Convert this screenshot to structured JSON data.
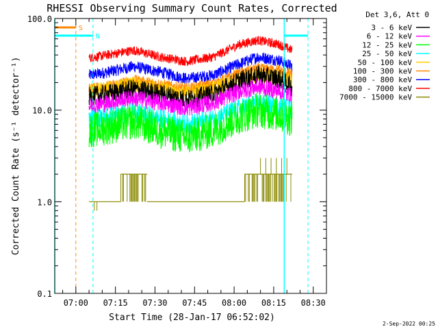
{
  "chart_data": {
    "type": "line",
    "title": "RHESSI Observing Summary Count Rates, Corrected",
    "xlabel": "Start Time (28-Jan-17 06:52:02)",
    "ylabel": "Corrected Count Rate (s⁻¹ detector⁻¹)",
    "yscale": "log",
    "ylim": [
      0.1,
      100
    ],
    "xlim_minutes_after_0652": [
      0,
      103
    ],
    "y_tick_labels": [
      "100.0",
      "10.0",
      "1.0",
      "0.1"
    ],
    "y_tick_values": [
      100,
      10,
      1,
      0.1
    ],
    "x_tick_labels": [
      "07:00",
      "07:15",
      "07:30",
      "07:45",
      "08:00",
      "08:15",
      "08:30"
    ],
    "x_tick_values_min": [
      8,
      23,
      38,
      53,
      68,
      83,
      98
    ],
    "legend": {
      "header": "Det 3,6, Att 0",
      "entries": [
        {
          "label": "3 - 6 keV",
          "color": "#000000"
        },
        {
          "label": "6 - 12 keV",
          "color": "#ff00ff"
        },
        {
          "label": "12 - 25 keV",
          "color": "#00ff00"
        },
        {
          "label": "25 - 50 keV",
          "color": "#00ffff"
        },
        {
          "label": "50 - 100 keV",
          "color": "#ffcc00"
        },
        {
          "label": "100 - 300 keV",
          "color": "#ff8800"
        },
        {
          "label": "300 - 800 keV",
          "color": "#0000ff"
        },
        {
          "label": "800 - 7000 keV",
          "color": "#ff0000"
        },
        {
          "label": "7000 - 15000 keV",
          "color": "#888800"
        }
      ]
    },
    "series": [
      {
        "name": "3 - 6 keV",
        "color": "#000000",
        "start": 13,
        "end": 90,
        "amp": 0.25,
        "points": [
          [
            13,
            14
          ],
          [
            20,
            15
          ],
          [
            30,
            17
          ],
          [
            40,
            15
          ],
          [
            50,
            13
          ],
          [
            60,
            15
          ],
          [
            70,
            21
          ],
          [
            77,
            24
          ],
          [
            85,
            22
          ],
          [
            90,
            18
          ]
        ]
      },
      {
        "name": "6 - 12 keV",
        "color": "#ff00ff",
        "start": 13,
        "end": 90,
        "amp": 0.22,
        "points": [
          [
            13,
            11
          ],
          [
            20,
            12
          ],
          [
            30,
            13.5
          ],
          [
            40,
            12
          ],
          [
            50,
            10.5
          ],
          [
            60,
            12
          ],
          [
            70,
            16
          ],
          [
            77,
            18
          ],
          [
            85,
            16
          ],
          [
            90,
            14
          ]
        ]
      },
      {
        "name": "12 - 25 keV",
        "color": "#00ff00",
        "start": 13,
        "end": 90,
        "amp": 0.45,
        "points": [
          [
            13,
            6
          ],
          [
            20,
            6.5
          ],
          [
            30,
            7.5
          ],
          [
            40,
            6
          ],
          [
            50,
            5
          ],
          [
            60,
            6
          ],
          [
            70,
            8.5
          ],
          [
            77,
            10
          ],
          [
            85,
            9
          ],
          [
            90,
            8
          ]
        ]
      },
      {
        "name": "25 - 50 keV",
        "color": "#00ffff",
        "start": 13,
        "end": 90,
        "amp": 0.25,
        "points": [
          [
            13,
            8
          ],
          [
            20,
            8.5
          ],
          [
            30,
            9.5
          ],
          [
            40,
            8
          ],
          [
            50,
            7
          ],
          [
            60,
            8
          ],
          [
            70,
            10.5
          ],
          [
            77,
            12
          ],
          [
            85,
            11
          ],
          [
            90,
            10
          ]
        ]
      },
      {
        "name": "50 - 100 keV",
        "color": "#ffcc00",
        "start": 13,
        "end": 90,
        "amp": 0.2,
        "points": [
          [
            13,
            16
          ],
          [
            20,
            17
          ],
          [
            30,
            19
          ],
          [
            40,
            17
          ],
          [
            50,
            15
          ],
          [
            60,
            17
          ],
          [
            70,
            22
          ],
          [
            77,
            24
          ],
          [
            85,
            23
          ],
          [
            90,
            20
          ]
        ]
      },
      {
        "name": "100 - 300 keV",
        "color": "#ff8800",
        "start": 13,
        "end": 90,
        "amp": 0.15,
        "points": [
          [
            13,
            17
          ],
          [
            20,
            18
          ],
          [
            30,
            21
          ],
          [
            40,
            19
          ],
          [
            50,
            17
          ],
          [
            60,
            19
          ],
          [
            70,
            25
          ],
          [
            77,
            28
          ],
          [
            85,
            27
          ],
          [
            90,
            24
          ]
        ]
      },
      {
        "name": "300 - 800 keV",
        "color": "#0000ff",
        "start": 13,
        "end": 90,
        "amp": 0.15,
        "points": [
          [
            13,
            24
          ],
          [
            20,
            26
          ],
          [
            30,
            30
          ],
          [
            40,
            26
          ],
          [
            50,
            22
          ],
          [
            60,
            24
          ],
          [
            70,
            32
          ],
          [
            77,
            38
          ],
          [
            85,
            35
          ],
          [
            90,
            30
          ]
        ]
      },
      {
        "name": "800 - 7000 keV",
        "color": "#ff0000",
        "start": 13,
        "end": 90,
        "amp": 0.12,
        "points": [
          [
            13,
            37
          ],
          [
            20,
            40
          ],
          [
            30,
            45
          ],
          [
            40,
            38
          ],
          [
            50,
            34
          ],
          [
            60,
            38
          ],
          [
            70,
            52
          ],
          [
            77,
            58
          ],
          [
            85,
            52
          ],
          [
            90,
            45
          ]
        ]
      }
    ],
    "high_energy_steps": {
      "name": "7000 - 15000 keV",
      "color": "#888800",
      "baseline": 1.0,
      "segments": [
        [
          13,
          25,
          1.0
        ],
        [
          25,
          35,
          2.0
        ],
        [
          35,
          72,
          1.0
        ],
        [
          72,
          90,
          2.0
        ]
      ],
      "spikes": [
        [
          78,
          3.0
        ],
        [
          80,
          3.0
        ],
        [
          82,
          3.0
        ],
        [
          84,
          3.0
        ],
        [
          86,
          3.0
        ],
        [
          88,
          3.0
        ],
        [
          15,
          0.8
        ],
        [
          16,
          0.8
        ]
      ]
    },
    "flags": [
      {
        "label": "S",
        "color": "#ff8800",
        "start": 0,
        "end": 8,
        "value": 80,
        "boundary": 8,
        "boundary_style": "dashed"
      },
      {
        "label": "N",
        "color": "#00ffff",
        "start": 0,
        "end": 14.5,
        "value": 65,
        "boundary": 14.5,
        "boundary_style": "dashed"
      },
      {
        "label": "",
        "color": "#00ffff",
        "start": 87,
        "end": 96,
        "value": 65,
        "boundary": 96,
        "boundary_style": "dashed"
      }
    ],
    "solid_markers": [
      {
        "value": 0,
        "color": "#00ffff"
      },
      {
        "value": 87,
        "color": "#00ffff"
      }
    ],
    "timestamp": "2-Sep-2022 00:25"
  }
}
